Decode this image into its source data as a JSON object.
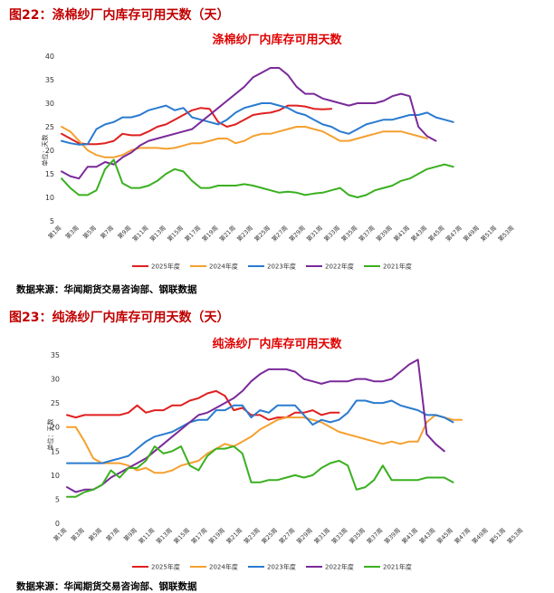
{
  "figures": [
    {
      "fig_title": "图22：涤棉纱厂内库存可用天数（天）",
      "source": "数据来源：华闻期货交易咨询部、钢联数据"
    },
    {
      "fig_title": "图23：纯涤纱厂内库存可用天数（天）",
      "source": "数据来源：华闻期货交易咨询部、钢联数据"
    }
  ],
  "chart_data": [
    {
      "type": "line",
      "title": "涤棉纱厂内库存可用天数",
      "ylabel": "单位：天数",
      "xlabel": "",
      "ylim": [
        5,
        40
      ],
      "yticks": [
        5,
        10,
        15,
        20,
        25,
        30,
        35,
        40
      ],
      "grid": false,
      "legend": "bottom",
      "x_count": 53,
      "x_labels": [
        "第1周",
        "第3周",
        "第5周",
        "第7周",
        "第9周",
        "第11周",
        "第13周",
        "第15周",
        "第17周",
        "第19周",
        "第21周",
        "第23周",
        "第25周",
        "第27周",
        "第29周",
        "第31周",
        "第33周",
        "第35周",
        "第37周",
        "第39周",
        "第41周",
        "第43周",
        "第45周",
        "第47周",
        "第49周",
        "第51周",
        "第53周"
      ],
      "series": [
        {
          "name": "2025年度",
          "color": "#e02020",
          "values": [
            23.5,
            22.5,
            21.5,
            21.3,
            21.3,
            21.5,
            22.0,
            23.5,
            23.2,
            23.2,
            24.0,
            25.0,
            25.5,
            26.5,
            27.5,
            28.5,
            29.0,
            28.8,
            26.0,
            25.0,
            25.5,
            26.5,
            27.5,
            27.8,
            28.0,
            28.5,
            29.5,
            29.5,
            29.3,
            28.8,
            28.7,
            28.8
          ]
        },
        {
          "name": "2024年度",
          "color": "#f5a030",
          "values": [
            25.0,
            24.0,
            22.0,
            20.0,
            19.0,
            18.5,
            18.5,
            19.0,
            20.0,
            20.5,
            20.5,
            20.5,
            20.3,
            20.5,
            21.0,
            21.5,
            21.5,
            22.0,
            22.5,
            22.5,
            21.5,
            22.0,
            23.0,
            23.5,
            23.5,
            24.0,
            24.5,
            25.0,
            25.0,
            24.5,
            24.0,
            23.0,
            22.0,
            22.0,
            22.5,
            23.0,
            23.5,
            24.0,
            24.0,
            24.0,
            23.5,
            23.0,
            22.5
          ]
        },
        {
          "name": "2023年度",
          "color": "#2a7bd0",
          "values": [
            22.0,
            21.5,
            21.2,
            21.3,
            24.5,
            25.5,
            26.0,
            27.0,
            27.0,
            27.5,
            28.5,
            29.0,
            29.5,
            28.5,
            29.0,
            27.0,
            26.5,
            26.0,
            25.5,
            26.5,
            28.0,
            29.0,
            29.5,
            30.0,
            30.0,
            29.5,
            29.0,
            28.0,
            27.5,
            26.5,
            25.5,
            25.0,
            24.0,
            23.5,
            24.5,
            25.5,
            26.0,
            26.5,
            26.5,
            27.0,
            27.5,
            27.5,
            28.0,
            27.0,
            26.5,
            26.0
          ]
        },
        {
          "name": "2022年度",
          "color": "#7a2a9a",
          "values": [
            15.5,
            14.5,
            14.0,
            16.5,
            16.5,
            17.5,
            17.0,
            18.5,
            19.5,
            21.0,
            22.0,
            22.5,
            23.0,
            23.5,
            24.0,
            24.5,
            26.0,
            27.5,
            29.0,
            30.5,
            32.0,
            33.5,
            35.5,
            36.5,
            37.5,
            37.5,
            36.0,
            33.5,
            32.0,
            32.0,
            31.0,
            30.5,
            30.0,
            29.5,
            30.0,
            30.0,
            30.0,
            30.5,
            31.5,
            32.0,
            31.5,
            25.0,
            23.0,
            22.0
          ]
        },
        {
          "name": "2021年度",
          "color": "#3ab020",
          "values": [
            14.0,
            12.0,
            10.5,
            10.5,
            11.5,
            16.0,
            18.0,
            13.0,
            12.0,
            12.0,
            12.5,
            13.5,
            15.0,
            16.0,
            15.5,
            13.5,
            12.0,
            12.0,
            12.5,
            12.5,
            12.5,
            12.8,
            12.5,
            12.0,
            11.5,
            11.0,
            11.2,
            11.0,
            10.5,
            10.8,
            11.0,
            11.5,
            12.0,
            10.5,
            10.0,
            10.5,
            11.5,
            12.0,
            12.5,
            13.5,
            14.0,
            15.0,
            16.0,
            16.5,
            17.0,
            16.5
          ]
        }
      ]
    },
    {
      "type": "line",
      "title": "纯涤纱厂内库存可用天数",
      "ylabel": "单位：天数",
      "xlabel": "",
      "ylim": [
        0,
        35
      ],
      "yticks": [
        0,
        5,
        10,
        15,
        20,
        25,
        30,
        35
      ],
      "grid": false,
      "legend": "bottom",
      "x_count": 53,
      "x_labels": [
        "第1周",
        "第3周",
        "第5周",
        "第7周",
        "第9周",
        "第11周",
        "第13周",
        "第15周",
        "第17周",
        "第19周",
        "第21周",
        "第23周",
        "第25周",
        "第27周",
        "第29周",
        "第31周",
        "第33周",
        "第35周",
        "第37周",
        "第39周",
        "第41周",
        "第43周",
        "第45周",
        "第47周",
        "第49周",
        "第51周",
        "第53周"
      ],
      "series": [
        {
          "name": "2025年度",
          "color": "#e02020",
          "values": [
            22.5,
            22.0,
            22.5,
            22.5,
            22.5,
            22.5,
            22.5,
            23.0,
            24.5,
            23.0,
            23.5,
            23.5,
            24.5,
            24.5,
            25.5,
            26.0,
            27.0,
            27.5,
            26.5,
            23.5,
            24.0,
            22.5,
            22.5,
            21.5,
            22.0,
            22.0,
            23.0,
            23.0,
            23.5,
            22.5,
            23.0,
            23.0
          ]
        },
        {
          "name": "2024年度",
          "color": "#f5a030",
          "values": [
            20.0,
            20.0,
            17.0,
            13.5,
            12.5,
            12.5,
            12.5,
            12.0,
            11.0,
            11.5,
            10.5,
            10.5,
            11.0,
            12.0,
            12.5,
            13.0,
            14.5,
            15.5,
            16.5,
            16.0,
            17.0,
            18.0,
            19.5,
            20.5,
            21.5,
            22.0,
            22.0,
            22.0,
            21.5,
            21.0,
            20.0,
            19.0,
            18.5,
            18.0,
            17.5,
            17.0,
            16.5,
            17.0,
            16.5,
            17.0,
            17.0,
            21.0,
            22.5,
            22.0,
            21.5,
            21.5
          ]
        },
        {
          "name": "2023年度",
          "color": "#2a7bd0",
          "values": [
            12.5,
            12.5,
            12.5,
            12.5,
            12.5,
            13.0,
            13.5,
            14.0,
            15.5,
            17.0,
            18.0,
            18.5,
            19.0,
            20.0,
            21.0,
            21.5,
            21.5,
            23.5,
            23.5,
            24.5,
            24.5,
            22.0,
            23.5,
            23.0,
            24.5,
            24.5,
            24.5,
            22.5,
            20.5,
            21.5,
            21.0,
            21.5,
            23.0,
            25.5,
            25.5,
            25.0,
            25.0,
            25.5,
            24.5,
            24.0,
            23.5,
            22.5,
            22.5,
            22.0,
            21.0
          ]
        },
        {
          "name": "2022年度",
          "color": "#7a2a9a",
          "values": [
            7.5,
            6.5,
            7.0,
            7.0,
            8.0,
            9.5,
            10.5,
            11.5,
            12.5,
            13.5,
            15.0,
            16.5,
            18.0,
            19.5,
            21.0,
            22.5,
            23.0,
            24.0,
            25.0,
            26.0,
            27.5,
            29.5,
            31.0,
            32.0,
            32.0,
            32.0,
            31.5,
            30.0,
            29.5,
            29.0,
            29.5,
            29.5,
            29.5,
            30.0,
            30.0,
            29.5,
            29.5,
            30.0,
            31.5,
            33.0,
            34.0,
            18.5,
            16.5,
            15.0
          ]
        },
        {
          "name": "2021年度",
          "color": "#3ab020",
          "values": [
            5.5,
            5.5,
            6.5,
            7.0,
            8.0,
            11.0,
            9.5,
            11.5,
            11.5,
            13.0,
            16.0,
            14.5,
            15.0,
            16.0,
            12.0,
            11.0,
            14.0,
            15.5,
            15.5,
            16.0,
            14.5,
            8.5,
            8.5,
            9.0,
            9.0,
            9.5,
            10.0,
            9.5,
            10.0,
            11.5,
            12.5,
            13.0,
            12.0,
            7.0,
            7.5,
            9.0,
            12.0,
            9.0,
            9.0,
            9.0,
            9.0,
            9.5,
            9.5,
            9.5,
            8.5
          ]
        }
      ]
    }
  ]
}
